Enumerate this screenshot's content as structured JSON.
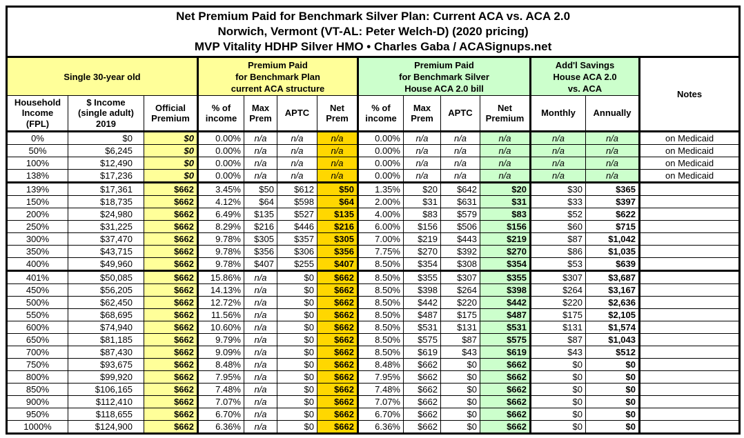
{
  "title": {
    "line1": "Net Premium Paid for Benchmark Silver Plan: Current ACA vs. ACA 2.0",
    "line2": "Norwich, Vermont (VT-AL: Peter Welch-D) (2020 pricing)",
    "line3": "MVP Vitality HDHP Silver HMO • Charles Gaba / ACASignups.net"
  },
  "group_headers": {
    "subject": "Single 30-year old",
    "aca": "Premium Paid\nfor Benchmark Plan\ncurrent ACA structure",
    "aca2": "Premium Paid\nfor Benchmark Silver\nHouse ACA 2.0 bill",
    "savings": "Add'l Savings\nHouse ACA 2.0\nvs. ACA",
    "notes": "Notes"
  },
  "column_headers": [
    "Household\nIncome\n(FPL)",
    "$ Income\n(single adult)\n2019",
    "Official\nPremium",
    "% of\nincome",
    "Max\nPrem",
    "APTC",
    "Net\nPrem",
    "% of\nincome",
    "Max\nPrem",
    "APTC",
    "Net\nPremium",
    "Monthly",
    "Annually"
  ],
  "colors": {
    "pale_yellow": "#FFFF99",
    "gold": "#FFD700",
    "pale_green": "#CCFFCC"
  },
  "chart_data": {
    "type": "table",
    "title": "Net Premium Paid for Benchmark Silver Plan: Current ACA vs. ACA 2.0",
    "subtitle": "Norwich, Vermont (VT-AL: Peter Welch-D) (2020 pricing) — MVP Vitality HDHP Silver HMO",
    "columns": [
      "Household Income (FPL)",
      "$ Income (single adult) 2019",
      "Official Premium",
      "ACA % of income",
      "ACA Max Prem",
      "ACA APTC",
      "ACA Net Prem",
      "ACA 2.0 % of income",
      "ACA 2.0 Max Prem",
      "ACA 2.0 APTC",
      "ACA 2.0 Net Premium",
      "Savings Monthly",
      "Savings Annually",
      "Notes"
    ],
    "rows": [
      [
        "0%",
        "$0",
        "$0",
        "0.00%",
        "n/a",
        "n/a",
        "n/a",
        "0.00%",
        "n/a",
        "n/a",
        "n/a",
        "n/a",
        "n/a",
        "on Medicaid"
      ],
      [
        "50%",
        "$6,245",
        "$0",
        "0.00%",
        "n/a",
        "n/a",
        "n/a",
        "0.00%",
        "n/a",
        "n/a",
        "n/a",
        "n/a",
        "n/a",
        "on Medicaid"
      ],
      [
        "100%",
        "$12,490",
        "$0",
        "0.00%",
        "n/a",
        "n/a",
        "n/a",
        "0.00%",
        "n/a",
        "n/a",
        "n/a",
        "n/a",
        "n/a",
        "on Medicaid"
      ],
      [
        "138%",
        "$17,236",
        "$0",
        "0.00%",
        "n/a",
        "n/a",
        "n/a",
        "0.00%",
        "n/a",
        "n/a",
        "n/a",
        "n/a",
        "n/a",
        "on Medicaid"
      ],
      [
        "139%",
        "$17,361",
        "$662",
        "3.45%",
        "$50",
        "$612",
        "$50",
        "1.35%",
        "$20",
        "$642",
        "$20",
        "$30",
        "$365",
        ""
      ],
      [
        "150%",
        "$18,735",
        "$662",
        "4.12%",
        "$64",
        "$598",
        "$64",
        "2.00%",
        "$31",
        "$631",
        "$31",
        "$33",
        "$397",
        ""
      ],
      [
        "200%",
        "$24,980",
        "$662",
        "6.49%",
        "$135",
        "$527",
        "$135",
        "4.00%",
        "$83",
        "$579",
        "$83",
        "$52",
        "$622",
        ""
      ],
      [
        "250%",
        "$31,225",
        "$662",
        "8.29%",
        "$216",
        "$446",
        "$216",
        "6.00%",
        "$156",
        "$506",
        "$156",
        "$60",
        "$715",
        ""
      ],
      [
        "300%",
        "$37,470",
        "$662",
        "9.78%",
        "$305",
        "$357",
        "$305",
        "7.00%",
        "$219",
        "$443",
        "$219",
        "$87",
        "$1,042",
        ""
      ],
      [
        "350%",
        "$43,715",
        "$662",
        "9.78%",
        "$356",
        "$306",
        "$356",
        "7.75%",
        "$270",
        "$392",
        "$270",
        "$86",
        "$1,035",
        ""
      ],
      [
        "400%",
        "$49,960",
        "$662",
        "9.78%",
        "$407",
        "$255",
        "$407",
        "8.50%",
        "$354",
        "$308",
        "$354",
        "$53",
        "$639",
        ""
      ],
      [
        "401%",
        "$50,085",
        "$662",
        "15.86%",
        "n/a",
        "$0",
        "$662",
        "8.50%",
        "$355",
        "$307",
        "$355",
        "$307",
        "$3,687",
        ""
      ],
      [
        "450%",
        "$56,205",
        "$662",
        "14.13%",
        "n/a",
        "$0",
        "$662",
        "8.50%",
        "$398",
        "$264",
        "$398",
        "$264",
        "$3,167",
        ""
      ],
      [
        "500%",
        "$62,450",
        "$662",
        "12.72%",
        "n/a",
        "$0",
        "$662",
        "8.50%",
        "$442",
        "$220",
        "$442",
        "$220",
        "$2,636",
        ""
      ],
      [
        "550%",
        "$68,695",
        "$662",
        "11.56%",
        "n/a",
        "$0",
        "$662",
        "8.50%",
        "$487",
        "$175",
        "$487",
        "$175",
        "$2,105",
        ""
      ],
      [
        "600%",
        "$74,940",
        "$662",
        "10.60%",
        "n/a",
        "$0",
        "$662",
        "8.50%",
        "$531",
        "$131",
        "$531",
        "$131",
        "$1,574",
        ""
      ],
      [
        "650%",
        "$81,185",
        "$662",
        "9.79%",
        "n/a",
        "$0",
        "$662",
        "8.50%",
        "$575",
        "$87",
        "$575",
        "$87",
        "$1,043",
        ""
      ],
      [
        "700%",
        "$87,430",
        "$662",
        "9.09%",
        "n/a",
        "$0",
        "$662",
        "8.50%",
        "$619",
        "$43",
        "$619",
        "$43",
        "$512",
        ""
      ],
      [
        "750%",
        "$93,675",
        "$662",
        "8.48%",
        "n/a",
        "$0",
        "$662",
        "8.48%",
        "$662",
        "$0",
        "$662",
        "$0",
        "$0",
        ""
      ],
      [
        "800%",
        "$99,920",
        "$662",
        "7.95%",
        "n/a",
        "$0",
        "$662",
        "7.95%",
        "$662",
        "$0",
        "$662",
        "$0",
        "$0",
        ""
      ],
      [
        "850%",
        "$106,165",
        "$662",
        "7.48%",
        "n/a",
        "$0",
        "$662",
        "7.48%",
        "$662",
        "$0",
        "$662",
        "$0",
        "$0",
        ""
      ],
      [
        "900%",
        "$112,410",
        "$662",
        "7.07%",
        "n/a",
        "$0",
        "$662",
        "7.07%",
        "$662",
        "$0",
        "$662",
        "$0",
        "$0",
        ""
      ],
      [
        "950%",
        "$118,655",
        "$662",
        "6.70%",
        "n/a",
        "$0",
        "$662",
        "6.70%",
        "$662",
        "$0",
        "$662",
        "$0",
        "$0",
        ""
      ],
      [
        "1000%",
        "$124,900",
        "$662",
        "6.36%",
        "n/a",
        "$0",
        "$662",
        "6.36%",
        "$662",
        "$0",
        "$662",
        "$0",
        "$0",
        ""
      ]
    ]
  }
}
